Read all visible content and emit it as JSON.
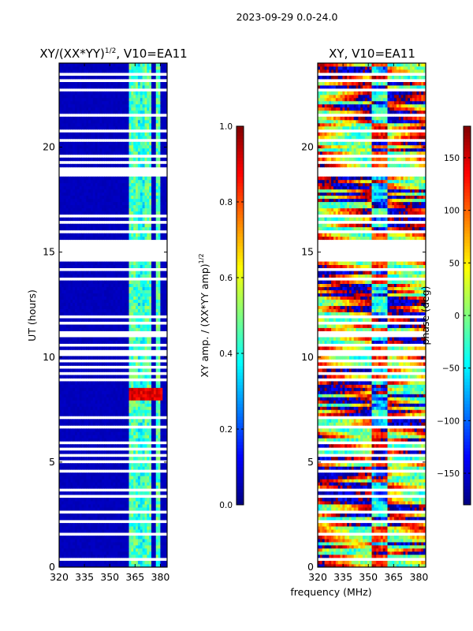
{
  "chart_data": {
    "type": "heatmap",
    "suptitle": "2023-09-29 0.0-24.0",
    "xlabel": "frequency (MHz)",
    "panels": [
      {
        "title": "XY/(XX*YY)",
        "title_sup": "1/2",
        "title_suffix": ", V10=EA11",
        "ylabel": "UT (hours)",
        "xlim": [
          320,
          384
        ],
        "ylim": [
          0,
          24
        ],
        "xticks": [
          "320",
          "335",
          "350",
          "365",
          "380"
        ],
        "xtick_values": [
          320,
          335,
          350,
          365,
          380
        ],
        "yticks": [
          "0",
          "5",
          "10",
          "15",
          "20"
        ],
        "ytick_values": [
          0,
          5,
          10,
          15,
          20
        ],
        "colorbar": {
          "label": "XY amp. / (XX*YY amp)",
          "label_sup": "1/2",
          "range": [
            0,
            1
          ],
          "ticks": [
            "0.0",
            "0.2",
            "0.4",
            "0.6",
            "0.8",
            "1.0"
          ],
          "tick_values": [
            0,
            0.2,
            0.4,
            0.6,
            0.8,
            1.0
          ]
        },
        "background_value": 0.05,
        "bright_channels_mhz": [
          [
            362,
            366,
            0.35
          ],
          [
            367,
            370,
            0.3
          ],
          [
            371,
            375,
            0.35
          ],
          [
            377,
            380,
            0.35
          ]
        ],
        "hotspot": {
          "ut": [
            7.9,
            8.6
          ],
          "freq": [
            362,
            381
          ],
          "value": 0.85
        }
      },
      {
        "title": "XY",
        "title_sup": "",
        "title_suffix": ", V10=EA11",
        "ylabel": "",
        "xlim": [
          320,
          384
        ],
        "ylim": [
          0,
          24
        ],
        "xticks": [
          "320",
          "335",
          "350",
          "365",
          "380"
        ],
        "xtick_values": [
          320,
          335,
          350,
          365,
          380
        ],
        "yticks": [
          "0",
          "5",
          "10",
          "15",
          "20"
        ],
        "ytick_values": [
          0,
          5,
          10,
          15,
          20
        ],
        "colorbar": {
          "label": "phase (deg)",
          "label_sup": "",
          "range": [
            -180,
            180
          ],
          "ticks": [
            "−150",
            "−100",
            "−50",
            "0",
            "50",
            "100",
            "150"
          ],
          "tick_values": [
            -150,
            -100,
            -50,
            0,
            50,
            100,
            150
          ]
        }
      }
    ],
    "flagged_ut_ranges": [
      [
        14.5,
        15.6
      ],
      [
        15.9,
        16.1
      ],
      [
        18.6,
        19.0
      ],
      [
        13.7,
        13.85
      ],
      [
        7.75,
        7.85
      ],
      [
        2.05,
        2.2
      ],
      [
        9.75,
        9.85
      ],
      [
        22.6,
        22.75
      ],
      [
        23.1,
        23.2
      ]
    ],
    "flagged_ut_lines": [
      0.4,
      1.2,
      1.6,
      2.6,
      3.0,
      3.4,
      3.7,
      4.2,
      4.6,
      5.0,
      5.3,
      5.6,
      5.9,
      6.3,
      6.7,
      6.9,
      7.1,
      8.9,
      9.2,
      9.5,
      10.1,
      10.3,
      10.6,
      11.0,
      11.2,
      11.6,
      11.9,
      12.3,
      12.6,
      12.9,
      13.2,
      14.2,
      16.4,
      16.7,
      17.1,
      17.4,
      18.0,
      19.3,
      19.6,
      20.3,
      20.8,
      21.5,
      23.5
    ]
  }
}
